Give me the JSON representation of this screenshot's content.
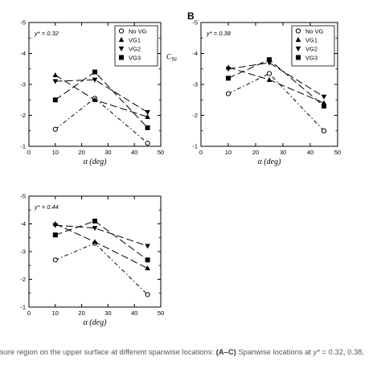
{
  "chart_data": [
    {
      "type": "line",
      "panel_label": "",
      "annotation": "y* = 0.32",
      "xlabel": "α (deg)",
      "ylabel": "",
      "xlim": [
        0,
        50
      ],
      "ylim": [
        -1,
        -5
      ],
      "xticks": [
        "0",
        "10",
        "20",
        "30",
        "40",
        "50"
      ],
      "yticks": [
        "-1",
        "-2",
        "-3",
        "-4",
        "-5"
      ],
      "legend": {
        "placement": "top-right",
        "entries": [
          "No VG",
          "VG1",
          "VG2",
          "VG3"
        ]
      },
      "series": [
        {
          "name": "No VG",
          "x": [
            10,
            25,
            45
          ],
          "y": [
            -1.55,
            -2.55,
            -1.1
          ]
        },
        {
          "name": "VG1",
          "x": [
            10,
            25,
            45
          ],
          "y": [
            -3.3,
            -2.5,
            -1.95
          ]
        },
        {
          "name": "VG2",
          "x": [
            10,
            25,
            45
          ],
          "y": [
            -3.1,
            -3.15,
            -2.1
          ]
        },
        {
          "name": "VG3",
          "x": [
            10,
            25,
            45
          ],
          "y": [
            -2.5,
            -3.4,
            -1.6
          ]
        }
      ]
    },
    {
      "type": "line",
      "panel_label": "B",
      "annotation": "y* = 0.38",
      "xlabel": "α (deg)",
      "ylabel": "C_Ni",
      "xlim": [
        0,
        50
      ],
      "ylim": [
        -1,
        -5
      ],
      "xticks": [
        "0",
        "10",
        "20",
        "30",
        "40",
        "50"
      ],
      "yticks": [
        "-1",
        "-2",
        "-3",
        "-4",
        "-5"
      ],
      "legend": {
        "placement": "top-right",
        "entries": [
          "No VG",
          "VG1",
          "VG2",
          "VG3"
        ]
      },
      "series": [
        {
          "name": "No VG",
          "x": [
            10,
            25,
            45
          ],
          "y": [
            -2.7,
            -3.35,
            -1.5
          ]
        },
        {
          "name": "VG1",
          "x": [
            10,
            25,
            45
          ],
          "y": [
            -3.55,
            -3.15,
            -2.4
          ]
        },
        {
          "name": "VG2",
          "x": [
            10,
            25,
            45
          ],
          "y": [
            -3.5,
            -3.7,
            -2.6
          ]
        },
        {
          "name": "VG3",
          "x": [
            10,
            25,
            45
          ],
          "y": [
            -3.2,
            -3.8,
            -2.3
          ]
        }
      ]
    },
    {
      "type": "line",
      "panel_label": "",
      "annotation": "y* = 0.44",
      "xlabel": "α (deg)",
      "ylabel": "",
      "xlim": [
        0,
        50
      ],
      "ylim": [
        -1,
        -5
      ],
      "xticks": [
        "0",
        "10",
        "20",
        "30",
        "40",
        "50"
      ],
      "yticks": [
        "-1",
        "-2",
        "-3",
        "-4",
        "-5"
      ],
      "legend": null,
      "series": [
        {
          "name": "No VG",
          "x": [
            10,
            25,
            45
          ],
          "y": [
            -2.7,
            -3.3,
            -1.45
          ]
        },
        {
          "name": "VG1",
          "x": [
            10,
            25,
            45
          ],
          "y": [
            -4.0,
            -3.35,
            -2.4
          ]
        },
        {
          "name": "VG2",
          "x": [
            10,
            25,
            45
          ],
          "y": [
            -3.95,
            -3.85,
            -3.2
          ]
        },
        {
          "name": "VG3",
          "x": [
            10,
            25,
            45
          ],
          "y": [
            -3.6,
            -4.1,
            -2.7
          ]
        }
      ]
    }
  ],
  "caption": {
    "text": "sure region on the upper surface at different spanwise locations: ",
    "bold": "(A–C)",
    "text2": " Spanwise locations at ",
    "tail": " = 0.32, 0.38,"
  },
  "style": {
    "line_color": "#000000",
    "axis_color": "#000000",
    "caption_color": "#555555"
  }
}
